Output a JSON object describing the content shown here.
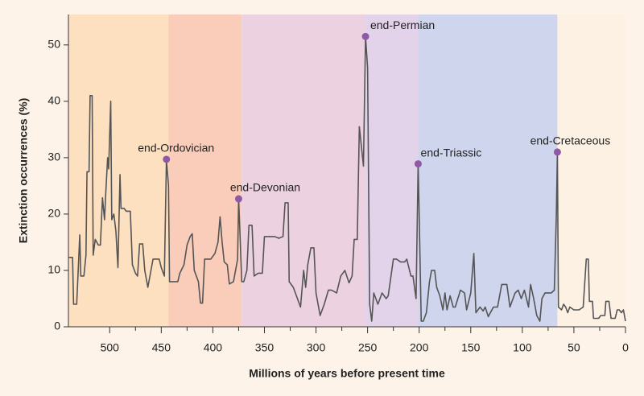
{
  "chart_data": {
    "type": "line",
    "x_label": "Millions of years before present time",
    "y_label": "Extinction occurrences (%)",
    "xlim": [
      540,
      0
    ],
    "ylim": [
      0,
      55.4
    ],
    "xticks": [
      500,
      450,
      400,
      350,
      300,
      250,
      200,
      150,
      100,
      50,
      0
    ],
    "yticks": [
      0,
      10,
      20,
      30,
      40,
      50
    ],
    "color": "#555555",
    "bands": [
      {
        "from": 540,
        "to": 443,
        "color": "#fde0c0"
      },
      {
        "from": 443,
        "to": 372,
        "color": "#f9cdb9"
      },
      {
        "from": 372,
        "to": 252,
        "color": "#ecd2e0"
      },
      {
        "from": 252,
        "to": 201,
        "color": "#e3d3ea"
      },
      {
        "from": 201,
        "to": 66,
        "color": "#ced5ec"
      },
      {
        "from": 66,
        "to": 0,
        "color": "#fdf1e4"
      }
    ],
    "annotations": [
      {
        "text": "end-Ordovician",
        "x": 445,
        "y": 29.7,
        "color": "#8e5aa5"
      },
      {
        "text": "end-Devonian",
        "x": 375,
        "y": 22.7,
        "color": "#8e5aa5"
      },
      {
        "text": "end-Permian",
        "x": 252,
        "y": 51.5,
        "color": "#8e5aa5"
      },
      {
        "text": "end-Triassic",
        "x": 201,
        "y": 28.9,
        "color": "#8e5aa5"
      },
      {
        "text": "end-Cretaceous",
        "x": 66,
        "y": 31,
        "color": "#8e5aa5"
      }
    ],
    "x": [
      540,
      536,
      535,
      532,
      531,
      529,
      528,
      525,
      523,
      522,
      520,
      519,
      517,
      516,
      514,
      511,
      509,
      507,
      505,
      504,
      502,
      501,
      499,
      498,
      496,
      494,
      492,
      490,
      489,
      486,
      484,
      480,
      478,
      475,
      473,
      471,
      468,
      466,
      463,
      460,
      458,
      456,
      452,
      450,
      447,
      445,
      443,
      442,
      438,
      434,
      432,
      428,
      425,
      422,
      420,
      418,
      414,
      412,
      410,
      408,
      402,
      398,
      395,
      393,
      391,
      389,
      386,
      384,
      380,
      376,
      375,
      374,
      372,
      370,
      367,
      365,
      362,
      360,
      356,
      352,
      350,
      340,
      336,
      332,
      330,
      327,
      326,
      322,
      318,
      315,
      312,
      310,
      308,
      305,
      302,
      300,
      296,
      292,
      288,
      285,
      280,
      276,
      272,
      268,
      265,
      263,
      260,
      258,
      254,
      252,
      250,
      248,
      246,
      244,
      240,
      236,
      232,
      230,
      225,
      222,
      218,
      214,
      212,
      208,
      206,
      203,
      201,
      200,
      198,
      196,
      193,
      190,
      188,
      185,
      183,
      180,
      177,
      175,
      173,
      170,
      167,
      165,
      160,
      156,
      154,
      150,
      147,
      145,
      141,
      138,
      136,
      133,
      128,
      124,
      120,
      115,
      112,
      107,
      104,
      101,
      98,
      96,
      94,
      92,
      89,
      86,
      83,
      81,
      78,
      72,
      69,
      67,
      66,
      65,
      62,
      60,
      58,
      56,
      54,
      50,
      45,
      41,
      38,
      36,
      35,
      32,
      31,
      26,
      24,
      20,
      19,
      16,
      14,
      10,
      8,
      6,
      4,
      2,
      0
    ],
    "values": [
      12.3,
      12.3,
      4,
      4,
      8,
      16.3,
      9,
      9,
      12.7,
      27.5,
      27.5,
      41,
      41,
      12.7,
      15.5,
      14.5,
      14.5,
      22.9,
      19,
      23,
      30,
      28,
      40,
      19,
      20,
      17,
      10.5,
      27,
      21,
      21,
      20.5,
      20.5,
      11,
      9.5,
      9,
      14.7,
      14.7,
      10,
      7,
      10,
      12,
      12,
      12,
      10.5,
      9,
      29.7,
      25,
      8,
      8,
      8,
      9.5,
      11,
      14.5,
      16,
      16.5,
      10,
      8,
      4.2,
      4.2,
      12,
      12,
      13,
      15,
      19.5,
      15,
      11.5,
      11,
      7.6,
      8,
      12,
      22.7,
      18,
      8,
      8,
      10,
      18,
      18,
      9,
      9.5,
      9.5,
      16,
      16,
      15.7,
      16,
      22,
      22,
      8,
      7,
      5,
      3.5,
      10,
      7,
      11,
      14,
      14,
      6,
      2,
      4,
      6.5,
      6.5,
      6,
      9,
      10,
      7.8,
      9,
      15.5,
      15.5,
      35.5,
      28.5,
      51.5,
      46,
      4,
      1,
      6,
      4,
      6,
      5,
      5.5,
      12,
      12,
      11.5,
      11.5,
      12,
      9,
      9,
      5,
      28.9,
      20,
      1,
      1,
      2.5,
      8,
      10,
      10,
      7,
      5.5,
      3,
      6,
      3,
      5.5,
      3.5,
      3.5,
      6.5,
      6,
      3,
      6,
      13,
      2.5,
      3.5,
      2.8,
      3.5,
      1.8,
      3.5,
      3.5,
      7.5,
      7.5,
      3.5,
      6,
      6.5,
      5,
      6.5,
      5,
      3.5,
      7.5,
      5,
      2,
      1,
      5,
      6,
      6,
      6.5,
      20,
      31,
      3.5,
      3,
      4,
      3.5,
      2.5,
      3.5,
      3,
      3,
      3.5,
      12,
      12,
      4.5,
      4.5,
      1.5,
      1.5,
      2,
      2,
      4.5,
      4.5,
      1.5,
      1.5,
      3,
      3,
      2.5,
      3,
      1
    ]
  }
}
